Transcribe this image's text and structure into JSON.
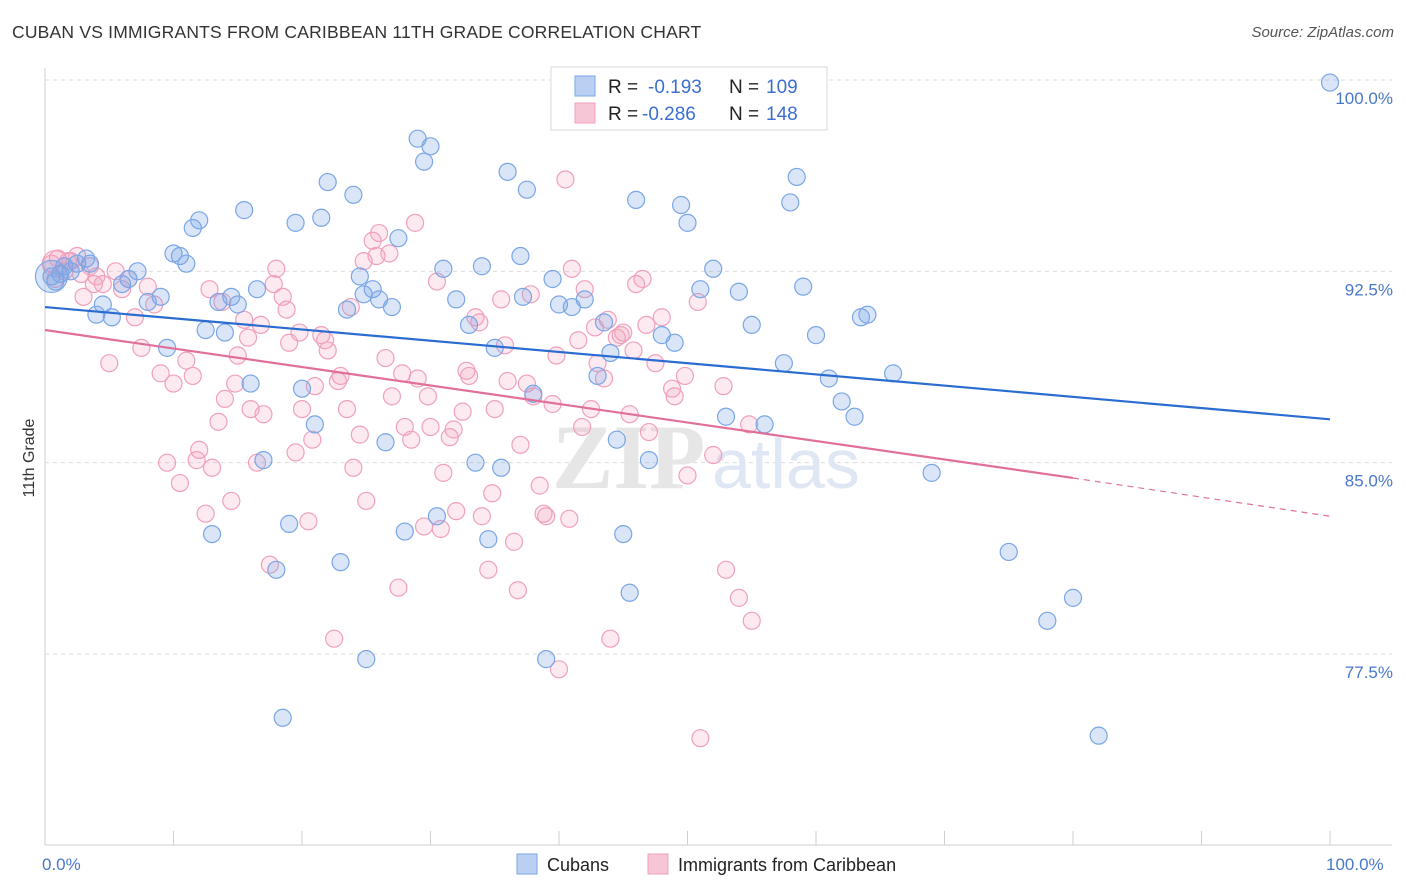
{
  "title": "CUBAN VS IMMIGRANTS FROM CARIBBEAN 11TH GRADE CORRELATION CHART",
  "source": "Source: ZipAtlas.com",
  "watermark": {
    "zip": "ZIP",
    "atlas": "atlas"
  },
  "colors": {
    "blue": "#7aa6e6",
    "pink": "#f0a0bc",
    "blue_line": "#2b6cd0",
    "pink_line": "#e0709a"
  },
  "chart_data": {
    "type": "scatter",
    "title": "CUBAN VS IMMIGRANTS FROM CARIBBEAN 11TH GRADE CORRELATION CHART",
    "xlabel": "",
    "ylabel": "11th Grade",
    "xlim": [
      0,
      100
    ],
    "ylim": [
      71.0,
      101.5
    ],
    "x_tick_labels": [
      "0.0%",
      "100.0%"
    ],
    "y_ticks": [
      77.5,
      85.0,
      92.5,
      100.0
    ],
    "y_tick_labels": [
      "77.5%",
      "85.0%",
      "92.5%",
      "100.0%"
    ],
    "legend": [
      {
        "name": "Cubans",
        "r_label": "R =",
        "r": "-0.193",
        "n_label": "N =",
        "n": "109"
      },
      {
        "name": "Immigrants from Caribbean",
        "r_label": "R =",
        "r": "-0.286",
        "n_label": "N =",
        "n": "148"
      }
    ],
    "series": [
      {
        "name": "Cubans",
        "trend": {
          "x": [
            0,
            100
          ],
          "y": [
            91.1,
            86.7
          ]
        },
        "points": [
          [
            0.5,
            92.3
          ],
          [
            0.8,
            92.1
          ],
          [
            1.2,
            92.4
          ],
          [
            2.5,
            92.8
          ],
          [
            3.2,
            93.0
          ],
          [
            4.5,
            91.2
          ],
          [
            5.2,
            90.7
          ],
          [
            6.5,
            92.2
          ],
          [
            7.2,
            92.5
          ],
          [
            9,
            91.5
          ],
          [
            9.5,
            89.5
          ],
          [
            10.5,
            93.1
          ],
          [
            11,
            92.8
          ],
          [
            11.5,
            94.2
          ],
          [
            12,
            94.5
          ],
          [
            12.5,
            90.2
          ],
          [
            13.5,
            91.3
          ],
          [
            14,
            90.1
          ],
          [
            14.5,
            91.5
          ],
          [
            15,
            91.2
          ],
          [
            15.5,
            94.9
          ],
          [
            16.5,
            91.8
          ],
          [
            17,
            85.1
          ],
          [
            18,
            80.8
          ],
          [
            19,
            82.6
          ],
          [
            19.5,
            94.4
          ],
          [
            20,
            87.9
          ],
          [
            21,
            86.5
          ],
          [
            21.5,
            94.6
          ],
          [
            22,
            96.0
          ],
          [
            23,
            81.1
          ],
          [
            23.5,
            91.0
          ],
          [
            24,
            95.5
          ],
          [
            24.5,
            92.3
          ],
          [
            25,
            77.3
          ],
          [
            25.5,
            91.8
          ],
          [
            26,
            91.4
          ],
          [
            26.5,
            85.8
          ],
          [
            27,
            91.1
          ],
          [
            27.5,
            93.8
          ],
          [
            28,
            82.3
          ],
          [
            29,
            97.7
          ],
          [
            29.5,
            96.8
          ],
          [
            30,
            97.4
          ],
          [
            31,
            92.6
          ],
          [
            32,
            91.4
          ],
          [
            33,
            90.4
          ],
          [
            33.5,
            85.0
          ],
          [
            34,
            92.7
          ],
          [
            35,
            89.5
          ],
          [
            35.5,
            84.8
          ],
          [
            36,
            96.4
          ],
          [
            37,
            93.1
          ],
          [
            37.5,
            95.7
          ],
          [
            38,
            87.7
          ],
          [
            39,
            77.3
          ],
          [
            39.5,
            92.2
          ],
          [
            40,
            91.2
          ],
          [
            41,
            91.1
          ],
          [
            42,
            91.4
          ],
          [
            43,
            88.4
          ],
          [
            43.5,
            90.5
          ],
          [
            44,
            89.3
          ],
          [
            44.5,
            85.9
          ],
          [
            45,
            82.2
          ],
          [
            45.5,
            79.9
          ],
          [
            46,
            95.3
          ],
          [
            47,
            85.1
          ],
          [
            48,
            90.0
          ],
          [
            49,
            89.7
          ],
          [
            49.5,
            95.1
          ],
          [
            50,
            94.4
          ],
          [
            51,
            91.8
          ],
          [
            52,
            92.6
          ],
          [
            53,
            86.8
          ],
          [
            54,
            91.7
          ],
          [
            55,
            90.4
          ],
          [
            56,
            86.5
          ],
          [
            57.5,
            88.9
          ],
          [
            58,
            95.2
          ],
          [
            58.5,
            96.2
          ],
          [
            59,
            91.9
          ],
          [
            60,
            90.0
          ],
          [
            61,
            88.3
          ],
          [
            62,
            87.4
          ],
          [
            63,
            86.8
          ],
          [
            63.5,
            90.7
          ],
          [
            64,
            90.8
          ],
          [
            66,
            88.5
          ],
          [
            69,
            84.6
          ],
          [
            75,
            81.5
          ],
          [
            78,
            78.8
          ],
          [
            80,
            79.7
          ],
          [
            82,
            74.3
          ],
          [
            100,
            99.9
          ],
          [
            4,
            90.8
          ],
          [
            8,
            91.3
          ],
          [
            13,
            82.2
          ],
          [
            16,
            88.1
          ],
          [
            30.5,
            82.9
          ],
          [
            34.5,
            82.0
          ],
          [
            18.5,
            75.0
          ],
          [
            3.5,
            92.8
          ],
          [
            6,
            92.0
          ],
          [
            37.2,
            91.5
          ],
          [
            24.8,
            91.6
          ],
          [
            10,
            93.2
          ],
          [
            2,
            92.5
          ],
          [
            1.5,
            92.7
          ]
        ]
      },
      {
        "name": "Immigrants from Caribbean",
        "trend": {
          "x": [
            0,
            80
          ],
          "y": [
            90.2,
            84.4
          ]
        },
        "trend_dashed": {
          "x": [
            80,
            100
          ],
          "y": [
            84.4,
            82.9
          ]
        },
        "points": [
          [
            0.5,
            92.8
          ],
          [
            1,
            93.0
          ],
          [
            1.5,
            92.5
          ],
          [
            2,
            92.9
          ],
          [
            2.5,
            93.1
          ],
          [
            3,
            91.5
          ],
          [
            3.5,
            92.7
          ],
          [
            4,
            92.3
          ],
          [
            4.5,
            92.0
          ],
          [
            5,
            88.9
          ],
          [
            5.5,
            92.5
          ],
          [
            6,
            91.8
          ],
          [
            6.5,
            92.2
          ],
          [
            7,
            90.7
          ],
          [
            7.5,
            89.5
          ],
          [
            8,
            91.9
          ],
          [
            8.5,
            91.2
          ],
          [
            9,
            88.5
          ],
          [
            9.5,
            85.0
          ],
          [
            10,
            88.1
          ],
          [
            10.5,
            84.2
          ],
          [
            11,
            89.0
          ],
          [
            11.5,
            88.4
          ],
          [
            12,
            85.5
          ],
          [
            12.5,
            83.0
          ],
          [
            13,
            84.8
          ],
          [
            13.5,
            86.6
          ],
          [
            14,
            87.5
          ],
          [
            14.5,
            83.5
          ],
          [
            15,
            89.2
          ],
          [
            15.5,
            90.6
          ],
          [
            16,
            87.1
          ],
          [
            16.5,
            85.0
          ],
          [
            17,
            86.9
          ],
          [
            17.5,
            81.0
          ],
          [
            18,
            92.6
          ],
          [
            18.5,
            91.5
          ],
          [
            19,
            89.7
          ],
          [
            19.5,
            85.4
          ],
          [
            20,
            87.1
          ],
          [
            20.5,
            82.7
          ],
          [
            21,
            88.0
          ],
          [
            21.5,
            90.0
          ],
          [
            22,
            89.4
          ],
          [
            22.5,
            78.1
          ],
          [
            23,
            88.4
          ],
          [
            23.5,
            87.1
          ],
          [
            24,
            84.8
          ],
          [
            24.5,
            86.1
          ],
          [
            25,
            83.5
          ],
          [
            25.5,
            93.7
          ],
          [
            26,
            94.0
          ],
          [
            26.5,
            89.1
          ],
          [
            27,
            87.6
          ],
          [
            27.5,
            80.1
          ],
          [
            28,
            86.4
          ],
          [
            28.5,
            85.9
          ],
          [
            29,
            88.3
          ],
          [
            29.5,
            82.5
          ],
          [
            30,
            86.4
          ],
          [
            30.5,
            92.1
          ],
          [
            31,
            84.6
          ],
          [
            31.5,
            86.0
          ],
          [
            32,
            83.1
          ],
          [
            32.5,
            87.0
          ],
          [
            33,
            88.4
          ],
          [
            33.5,
            90.7
          ],
          [
            34,
            82.9
          ],
          [
            34.5,
            80.8
          ],
          [
            35,
            87.1
          ],
          [
            35.5,
            91.4
          ],
          [
            36,
            88.2
          ],
          [
            36.5,
            81.9
          ],
          [
            37,
            85.7
          ],
          [
            37.5,
            88.1
          ],
          [
            38,
            87.6
          ],
          [
            38.5,
            84.1
          ],
          [
            39,
            82.9
          ],
          [
            39.5,
            87.3
          ],
          [
            40,
            76.9
          ],
          [
            40.5,
            96.1
          ],
          [
            41,
            92.6
          ],
          [
            41.5,
            89.8
          ],
          [
            42,
            91.8
          ],
          [
            42.5,
            87.1
          ],
          [
            43,
            88.9
          ],
          [
            43.5,
            88.3
          ],
          [
            44,
            78.1
          ],
          [
            44.5,
            89.9
          ],
          [
            45,
            90.1
          ],
          [
            45.5,
            86.9
          ],
          [
            46,
            92.0
          ],
          [
            46.5,
            92.2
          ],
          [
            47,
            86.2
          ],
          [
            47.5,
            88.9
          ],
          [
            48,
            90.7
          ],
          [
            49,
            87.6
          ],
          [
            50,
            84.5
          ],
          [
            51,
            74.2
          ],
          [
            52,
            85.3
          ],
          [
            53,
            80.8
          ],
          [
            54,
            79.7
          ],
          [
            55,
            78.8
          ],
          [
            0.8,
            92.2
          ],
          [
            1.8,
            92.9
          ],
          [
            2.8,
            92.4
          ],
          [
            3.8,
            92.0
          ],
          [
            12.8,
            91.8
          ],
          [
            14.8,
            88.1
          ],
          [
            16.8,
            90.4
          ],
          [
            18.8,
            91.0
          ],
          [
            20.8,
            85.9
          ],
          [
            22.8,
            88.2
          ],
          [
            24.8,
            92.9
          ],
          [
            26.8,
            93.2
          ],
          [
            28.8,
            94.4
          ],
          [
            30.8,
            82.4
          ],
          [
            32.8,
            88.6
          ],
          [
            34.8,
            83.8
          ],
          [
            36.8,
            80.0
          ],
          [
            38.8,
            83.0
          ],
          [
            40.8,
            82.8
          ],
          [
            42.8,
            90.3
          ],
          [
            44.8,
            90.0
          ],
          [
            46.8,
            90.4
          ],
          [
            48.8,
            87.9
          ],
          [
            49.8,
            88.4
          ],
          [
            50.8,
            91.3
          ],
          [
            52.8,
            88.0
          ],
          [
            54.8,
            86.5
          ],
          [
            11.8,
            85.1
          ],
          [
            13.8,
            91.3
          ],
          [
            15.8,
            89.9
          ],
          [
            17.8,
            92.0
          ],
          [
            19.8,
            90.1
          ],
          [
            21.8,
            89.8
          ],
          [
            23.8,
            91.1
          ],
          [
            25.8,
            93.1
          ],
          [
            27.8,
            88.5
          ],
          [
            29.8,
            87.6
          ],
          [
            31.8,
            86.3
          ],
          [
            33.8,
            90.5
          ],
          [
            35.8,
            89.6
          ],
          [
            37.8,
            91.6
          ],
          [
            39.8,
            89.2
          ],
          [
            41.8,
            86.4
          ],
          [
            43.8,
            90.6
          ],
          [
            45.8,
            89.4
          ]
        ]
      }
    ]
  }
}
